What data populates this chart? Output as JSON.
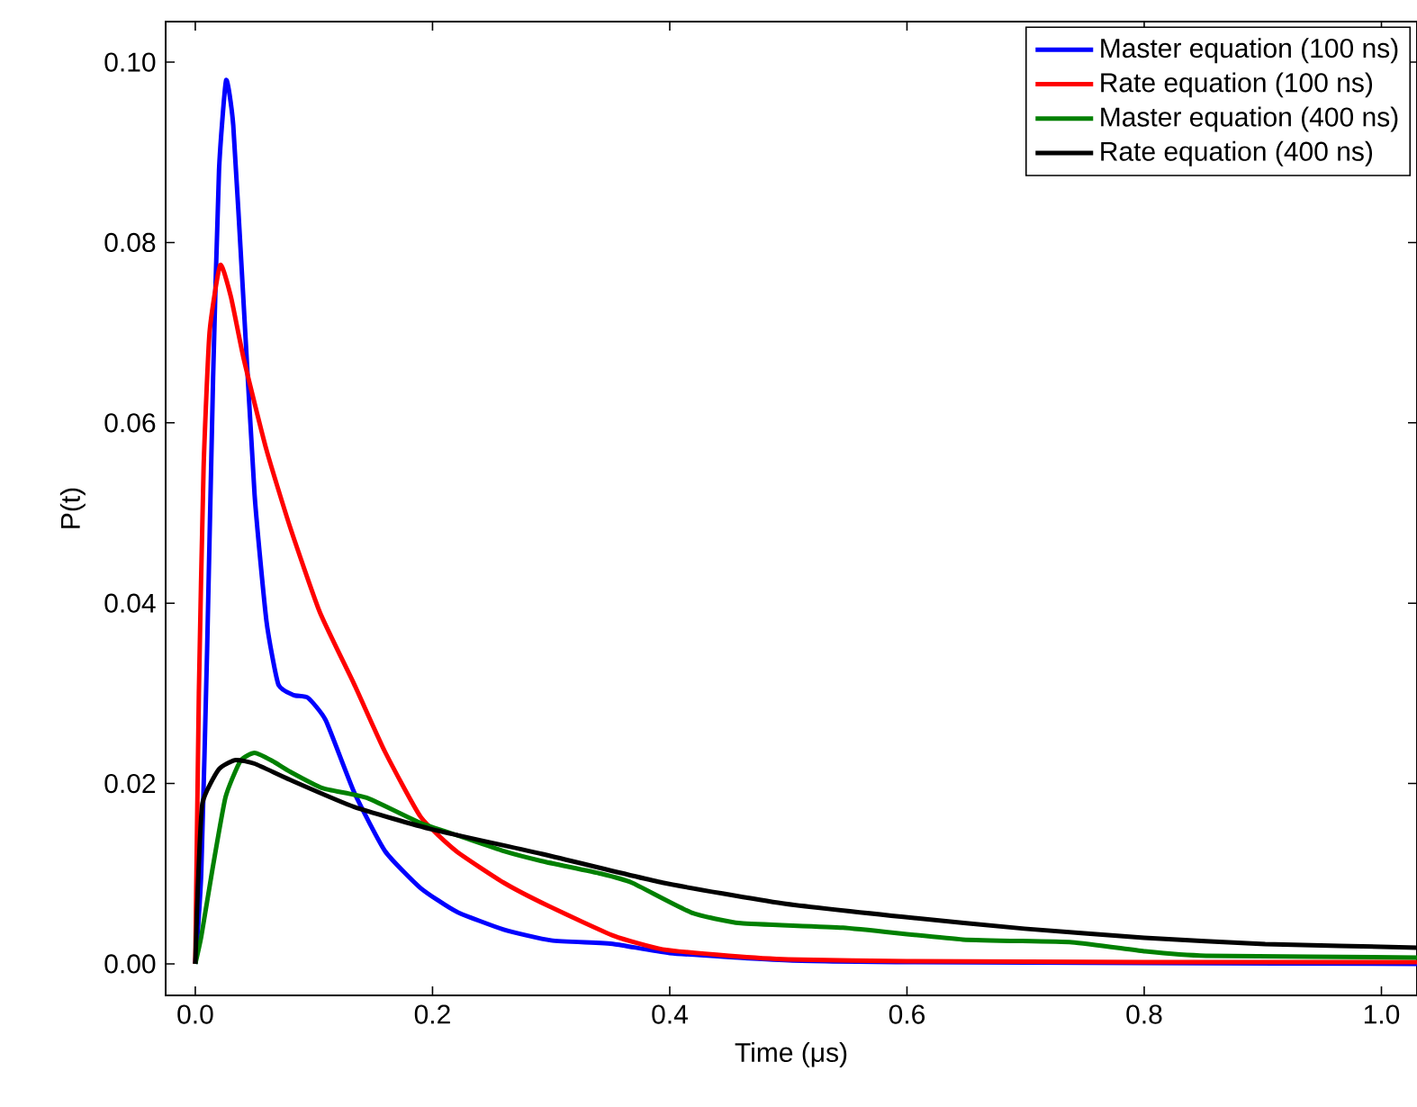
{
  "chart_data": {
    "type": "line",
    "xlabel": "Time (μs)",
    "ylabel": "P(t)",
    "xlim": [
      -0.025,
      1.03
    ],
    "ylim": [
      -0.0035,
      0.1045
    ],
    "xticks": [
      {
        "value": 0,
        "label": "0.0"
      },
      {
        "value": 0.2,
        "label": "0.2"
      },
      {
        "value": 0.4,
        "label": "0.4"
      },
      {
        "value": 0.6,
        "label": "0.6"
      },
      {
        "value": 0.8,
        "label": "0.8"
      },
      {
        "value": 1.0,
        "label": "1.0"
      }
    ],
    "yticks": [
      {
        "value": 0,
        "label": "0.00"
      },
      {
        "value": 0.02,
        "label": "0.02"
      },
      {
        "value": 0.04,
        "label": "0.04"
      },
      {
        "value": 0.06,
        "label": "0.06"
      },
      {
        "value": 0.08,
        "label": "0.08"
      },
      {
        "value": 0.1,
        "label": "0.10"
      }
    ],
    "legend": "top right",
    "grid": false,
    "series": [
      {
        "name": "Master equation (100 ns)",
        "color": "#0000ff",
        "x": [
          0,
          0.005,
          0.01,
          0.015,
          0.02,
          0.026,
          0.032,
          0.04,
          0.05,
          0.06,
          0.07,
          0.083,
          0.095,
          0.11,
          0.134,
          0.16,
          0.19,
          0.22,
          0.26,
          0.3,
          0.353,
          0.4,
          0.5,
          0.6,
          0.8,
          1.03
        ],
        "values": [
          0,
          0.01,
          0.035,
          0.065,
          0.088,
          0.098,
          0.093,
          0.075,
          0.052,
          0.038,
          0.031,
          0.0298,
          0.0295,
          0.027,
          0.019,
          0.0125,
          0.0084,
          0.0058,
          0.0038,
          0.0026,
          0.0022,
          0.0012,
          0.0004,
          0.0002,
          0.0001,
          0
        ]
      },
      {
        "name": "Rate equation (100 ns)",
        "color": "#ff0000",
        "x": [
          0,
          0.003,
          0.007,
          0.012,
          0.021,
          0.03,
          0.041,
          0.06,
          0.08,
          0.105,
          0.134,
          0.16,
          0.19,
          0.22,
          0.26,
          0.298,
          0.353,
          0.394,
          0.45,
          0.5,
          0.6,
          0.8,
          1.03
        ],
        "values": [
          0,
          0.03,
          0.055,
          0.07,
          0.0775,
          0.074,
          0.067,
          0.057,
          0.0484,
          0.039,
          0.031,
          0.0235,
          0.0163,
          0.0125,
          0.009,
          0.0064,
          0.0031,
          0.0016,
          0.0009,
          0.0005,
          0.0003,
          0.0002,
          0.0002
        ]
      },
      {
        "name": "Master equation (400 ns)",
        "color": "#008000",
        "x": [
          0,
          0.005,
          0.0146,
          0.0255,
          0.038,
          0.05,
          0.065,
          0.08,
          0.107,
          0.145,
          0.19,
          0.222,
          0.26,
          0.292,
          0.342,
          0.368,
          0.418,
          0.46,
          0.546,
          0.647,
          0.739,
          0.8,
          0.852,
          1.03
        ],
        "values": [
          0,
          0.003,
          0.0106,
          0.0185,
          0.0225,
          0.0234,
          0.0225,
          0.0213,
          0.0195,
          0.0184,
          0.0156,
          0.0142,
          0.0125,
          0.0114,
          0.01,
          0.009,
          0.0057,
          0.0045,
          0.004,
          0.0027,
          0.0024,
          0.0014,
          0.0009,
          0.0007
        ]
      },
      {
        "name": "Rate equation (400 ns)",
        "color": "#000000",
        "x": [
          0,
          0.002,
          0.006,
          0.02,
          0.034,
          0.05,
          0.08,
          0.134,
          0.2,
          0.292,
          0.394,
          0.495,
          0.597,
          0.699,
          0.8,
          0.902,
          1.03
        ],
        "values": [
          0,
          0.008,
          0.0178,
          0.0216,
          0.0226,
          0.0222,
          0.0204,
          0.0174,
          0.0149,
          0.0122,
          0.009,
          0.0067,
          0.0052,
          0.0039,
          0.0029,
          0.0022,
          0.0018
        ]
      }
    ]
  }
}
